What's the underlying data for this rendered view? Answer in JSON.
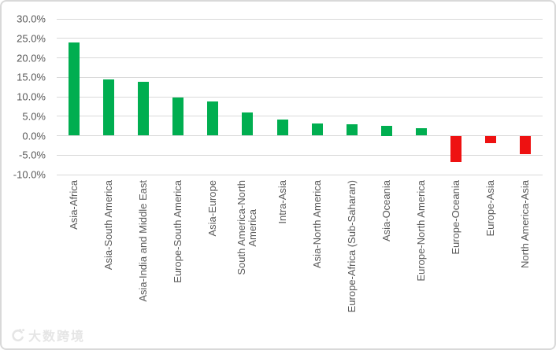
{
  "chart_data": {
    "type": "bar",
    "title": "",
    "xlabel": "",
    "ylabel": "",
    "categories": [
      "Asia-Africa",
      "Asia-South America",
      "Asia-India and Middle East",
      "Europe-South America",
      "Asia-Europe",
      "South America-North\nAmerica",
      "Intra-Asia",
      "Asia-North America",
      "Europe-Africa (Sub-Saharan)",
      "Asia-Oceania",
      "Europe-North America",
      "Europe-Oceania",
      "Europe-Asia",
      "North America-Asia"
    ],
    "values": [
      23.9,
      14.5,
      13.9,
      9.7,
      8.8,
      5.9,
      4.1,
      3.1,
      2.9,
      2.5,
      1.9,
      -6.8,
      -2.0,
      -4.8
    ],
    "unit": "%",
    "ylim": [
      -10,
      30
    ],
    "ytick_step": 5,
    "ytick_labels": [
      "30.0%",
      "25.0%",
      "20.0%",
      "15.0%",
      "10.0%",
      "5.0%",
      "0.0%",
      "-5.0%",
      "-10.0%"
    ],
    "grid": true,
    "legend": false,
    "bar_orientation": "vertical",
    "colors": {
      "positive": "#00AE50",
      "negative": "#EE1111",
      "gridline": "#D9D9D9",
      "axis_text": "#595959",
      "frame_border": "#D9D9D9"
    }
  },
  "watermark": {
    "logo_icon": "dashu-logo-icon",
    "text": "大数跨境"
  }
}
